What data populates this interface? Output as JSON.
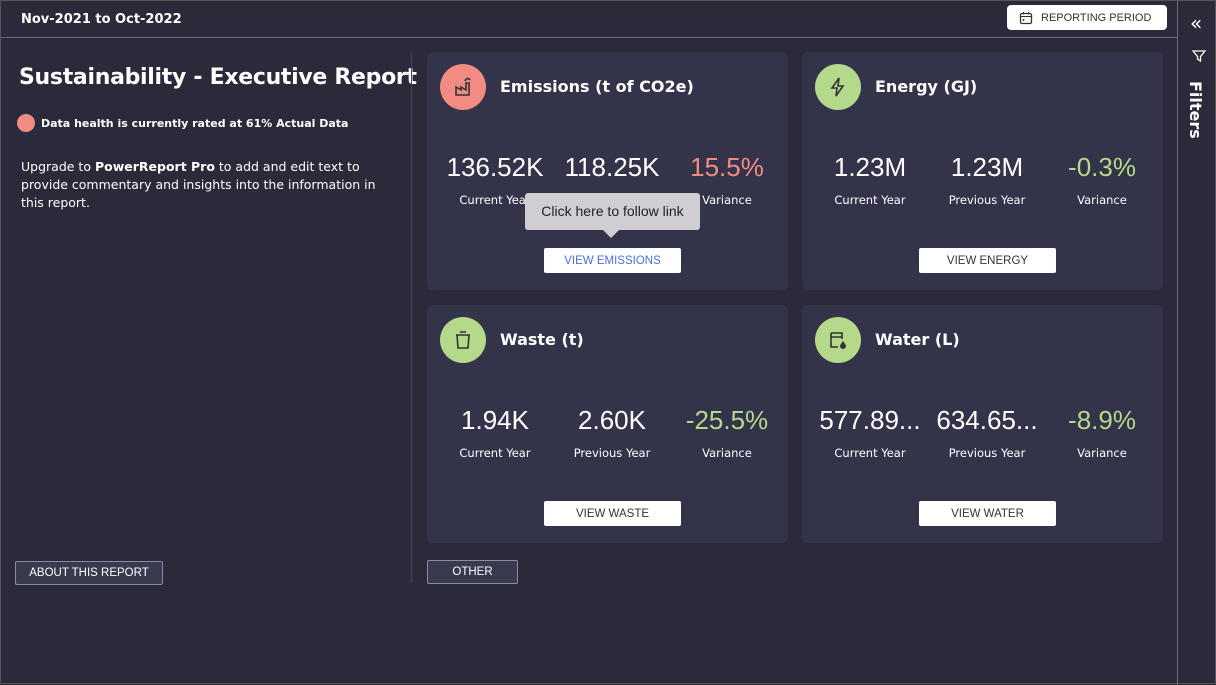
{
  "header": {
    "period": "Nov-2021 to Oct-2022",
    "reporting_period_label": "REPORTING PERIOD"
  },
  "sidebar": {
    "label": "Filters"
  },
  "left": {
    "title": "Sustainability - Executive Report",
    "health": "Data health is currently rated at 61% Actual Data",
    "upgrade_pre": "Upgrade to ",
    "upgrade_brand": "PowerReport Pro",
    "upgrade_post": " to add and edit text to provide commentary and insights into the information in this report.",
    "about_label": "ABOUT THIS REPORT"
  },
  "other_label": "OTHER",
  "labels": {
    "current": "Current Year",
    "previous": "Previous Year",
    "variance": "Variance"
  },
  "colors": {
    "negative": "#f28b82",
    "positive": "#b5d98a"
  },
  "cards": [
    {
      "title": "Emissions (t of CO2e)",
      "current": "136.52K",
      "previous": "118.25K",
      "variance": "15.5%",
      "button": "VIEW EMISSIONS",
      "icon": "factory-icon"
    },
    {
      "title": "Energy (GJ)",
      "current": "1.23M",
      "previous": "1.23M",
      "variance": "-0.3%",
      "button": "VIEW ENERGY",
      "icon": "lightning-icon"
    },
    {
      "title": "Waste (t)",
      "current": "1.94K",
      "previous": "2.60K",
      "variance": "-25.5%",
      "button": "VIEW WASTE",
      "icon": "recycle-bin-icon"
    },
    {
      "title": "Water (L)",
      "current": "577.89...",
      "previous": "634.65...",
      "variance": "-8.9%",
      "button": "VIEW WATER",
      "icon": "water-icon"
    }
  ],
  "tooltip": "Click here to follow link"
}
